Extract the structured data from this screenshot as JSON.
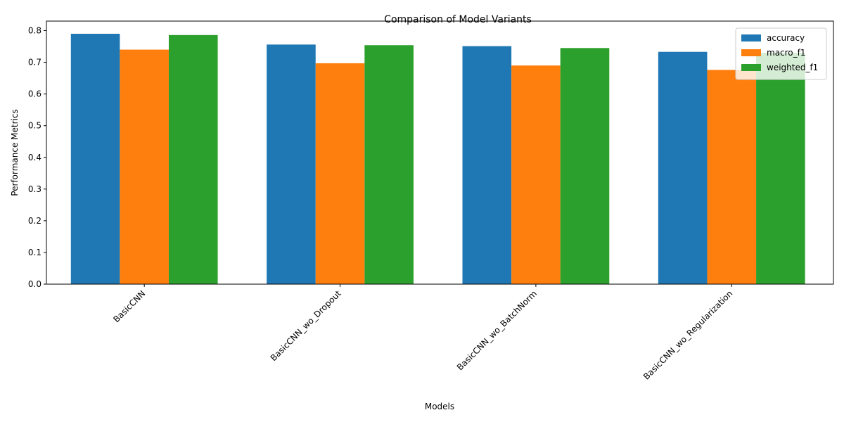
{
  "chart_data": {
    "type": "bar",
    "title": "Comparison of Model Variants",
    "xlabel": "Models",
    "ylabel": "Performance Metrics",
    "categories": [
      "BasicCNN",
      "BasicCNN_wo_Dropout",
      "BasicCNN_wo_BatchNorm",
      "BasicCNN_wo_Regularization"
    ],
    "series": [
      {
        "name": "accuracy",
        "color": "#1f77b4",
        "values": [
          0.79,
          0.756,
          0.751,
          0.733
        ]
      },
      {
        "name": "macro_f1",
        "color": "#ff7f0e",
        "values": [
          0.74,
          0.697,
          0.69,
          0.676
        ]
      },
      {
        "name": "weighted_f1",
        "color": "#2ca02c",
        "values": [
          0.786,
          0.754,
          0.745,
          0.73
        ]
      }
    ],
    "ylim": [
      0,
      0.83
    ],
    "yticks": [
      "0.0",
      "0.1",
      "0.2",
      "0.3",
      "0.4",
      "0.5",
      "0.6",
      "0.7",
      "0.8"
    ],
    "grid": false,
    "legend": "top-right",
    "tick_label_rotation": 45
  }
}
